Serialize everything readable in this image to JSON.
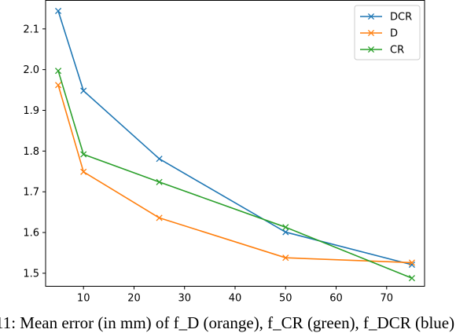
{
  "chart_data": {
    "type": "line",
    "x": [
      5,
      10,
      25,
      50,
      75
    ],
    "xlim": [
      2.5,
      77.5
    ],
    "ylim": [
      1.468,
      2.17
    ],
    "xticks": [
      10,
      20,
      30,
      40,
      50,
      60,
      70
    ],
    "yticks": [
      1.5,
      1.6,
      1.7,
      1.8,
      1.9,
      2.0,
      2.1
    ],
    "ytick_labels": [
      "1.5",
      "1.6",
      "1.7",
      "1.8",
      "1.9",
      "2.0",
      "2.1"
    ],
    "grid": false,
    "legend_position": "top-right",
    "marker": "x",
    "series": [
      {
        "name": "DCR",
        "color": "#1f77b4",
        "values": [
          2.144,
          1.948,
          1.781,
          1.601,
          1.521
        ]
      },
      {
        "name": "D",
        "color": "#ff7f0e",
        "values": [
          1.962,
          1.749,
          1.636,
          1.538,
          1.526
        ]
      },
      {
        "name": "CR",
        "color": "#2ca02c",
        "values": [
          1.997,
          1.792,
          1.724,
          1.613,
          1.488
        ]
      }
    ]
  },
  "caption": {
    "text": "11: Mean error (in mm) of f_D (orange), f_CR (green), f_DCR (blue)"
  }
}
